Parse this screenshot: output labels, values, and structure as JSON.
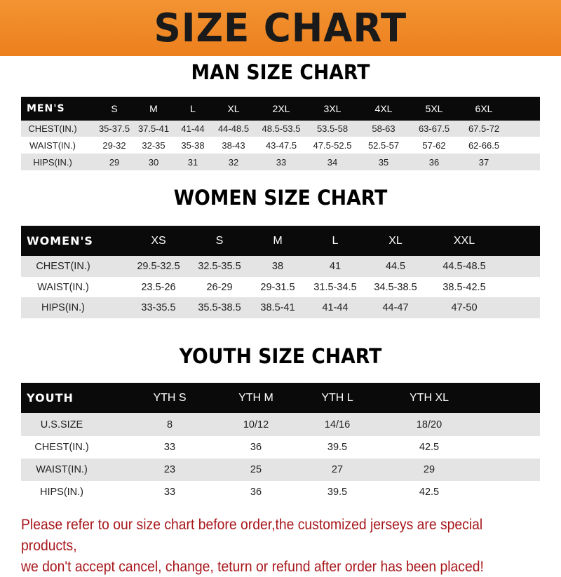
{
  "banner": "SIZE CHART",
  "men": {
    "title": "MAN SIZE CHART",
    "header": [
      "MEN'S",
      "S",
      "M",
      "L",
      "XL",
      "2XL",
      "3XL",
      "4XL",
      "5XL",
      "6XL"
    ],
    "rows": [
      [
        "CHEST(IN.)",
        "35-37.5",
        "37.5-41",
        "41-44",
        "44-48.5",
        "48.5-53.5",
        "53.5-58",
        "58-63",
        "63-67.5",
        "67.5-72"
      ],
      [
        "WAIST(IN.)",
        "29-32",
        "32-35",
        "35-38",
        "38-43",
        "43-47.5",
        "47.5-52.5",
        "52.5-57",
        "57-62",
        "62-66.5"
      ],
      [
        "HIPS(IN.)",
        "29",
        "30",
        "31",
        "32",
        "33",
        "34",
        "35",
        "36",
        "37"
      ]
    ]
  },
  "women": {
    "title": "WOMEN SIZE CHART",
    "header": [
      "WOMEN'S",
      "XS",
      "S",
      "M",
      "L",
      "XL",
      "XXL"
    ],
    "rows": [
      [
        "CHEST(IN.)",
        "29.5-32.5",
        "32.5-35.5",
        "38",
        "41",
        "44.5",
        "44.5-48.5"
      ],
      [
        "WAIST(IN.)",
        "23.5-26",
        "26-29",
        "29-31.5",
        "31.5-34.5",
        "34.5-38.5",
        "38.5-42.5"
      ],
      [
        "HIPS(IN.)",
        "33-35.5",
        "35.5-38.5",
        "38.5-41",
        "41-44",
        "44-47",
        "47-50"
      ]
    ]
  },
  "youth": {
    "title": "YOUTH SIZE CHART",
    "header": [
      "YOUTH",
      "YTH S",
      "YTH M",
      "YTH L",
      "YTH XL"
    ],
    "rows": [
      [
        "U.S.SIZE",
        "8",
        "10/12",
        "14/16",
        "18/20"
      ],
      [
        "CHEST(IN.)",
        "33",
        "36",
        "39.5",
        "42.5"
      ],
      [
        "WAIST(IN.)",
        "23",
        "25",
        "27",
        "29"
      ],
      [
        "HIPS(IN.)",
        "33",
        "36",
        "39.5",
        "42.5"
      ]
    ]
  },
  "note": {
    "line1": "Please refer to our size chart before order,the customized jerseys are special products,",
    "line2": "we don't accept cancel, change, teturn or refund after order has been placed!"
  },
  "colors": {
    "banner": "#f08a24",
    "header_row": "#0a0a0a",
    "stripe": "#e4e4e4",
    "note": "#a8171c"
  }
}
